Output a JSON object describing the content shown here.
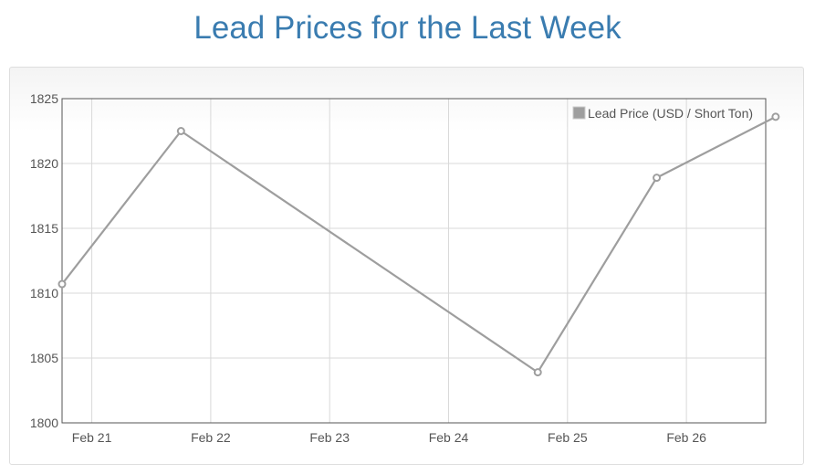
{
  "page": {
    "title": "Lead Prices for the Last Week"
  },
  "colors": {
    "title": "#3a7cb0",
    "series": "#9e9e9e",
    "grid": "#d9d9d9",
    "frame": "#555555"
  },
  "chart_data": {
    "type": "line",
    "title": "",
    "xlabel": "",
    "ylabel": "",
    "x_unit": "day",
    "x_ticks": [
      "Feb 21",
      "Feb 22",
      "Feb 23",
      "Feb 24",
      "Feb 25",
      "Feb 26"
    ],
    "x_range": [
      "Feb 20 18:00",
      "Feb 26 16:00"
    ],
    "ylim": [
      1800,
      1825
    ],
    "y_ticks": [
      1800,
      1805,
      1810,
      1815,
      1820,
      1825
    ],
    "grid": true,
    "legend_position": "top-right",
    "series": [
      {
        "name": "Lead Price (USD / Short Ton)",
        "color": "#9e9e9e",
        "x": [
          "Feb 20 18:00",
          "Feb 21 18:00",
          "Feb 24 18:00",
          "Feb 25 18:00",
          "Feb 26 18:00"
        ],
        "values": [
          1810.7,
          1822.5,
          1803.9,
          1818.9,
          1823.6
        ]
      }
    ]
  }
}
